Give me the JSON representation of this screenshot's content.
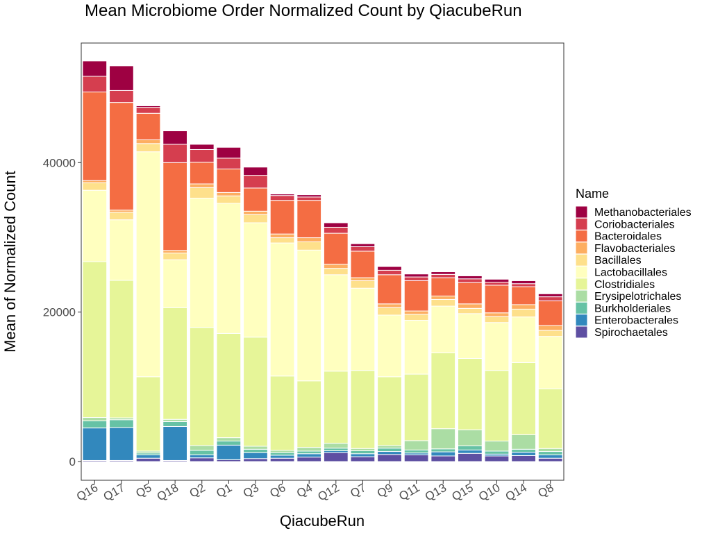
{
  "chart_data": {
    "type": "bar",
    "stacked": true,
    "title": "Mean Microbiome Order Normalized Count by QiacubeRun",
    "xlabel": "QiacubeRun",
    "ylabel": "Mean of Normalized Count",
    "ylim": [
      -2500,
      56000
    ],
    "yticks": [
      0,
      20000,
      40000
    ],
    "ytick_labels": [
      "0",
      "20000",
      "40000"
    ],
    "grid": false,
    "legend": {
      "title": "Name",
      "position": "right"
    },
    "categories": [
      "Q16",
      "Q17",
      "Q5",
      "Q18",
      "Q2",
      "Q1",
      "Q3",
      "Q6",
      "Q4",
      "Q12",
      "Q7",
      "Q9",
      "Q11",
      "Q13",
      "Q15",
      "Q10",
      "Q14",
      "Q8"
    ],
    "series": [
      {
        "name": "Spirochaetales",
        "color": "#5e4fa2",
        "values": [
          150,
          150,
          450,
          150,
          500,
          250,
          400,
          450,
          600,
          1200,
          650,
          950,
          900,
          750,
          1100,
          750,
          800,
          450
        ]
      },
      {
        "name": "Enterobacterales",
        "color": "#3288bd",
        "values": [
          4350,
          4400,
          450,
          4550,
          400,
          1950,
          800,
          400,
          450,
          250,
          400,
          400,
          250,
          550,
          450,
          250,
          450,
          450
        ]
      },
      {
        "name": "Burkholderiales",
        "color": "#66c2a5",
        "values": [
          950,
          1050,
          250,
          650,
          600,
          550,
          450,
          350,
          350,
          350,
          400,
          450,
          400,
          400,
          550,
          400,
          400,
          450
        ]
      },
      {
        "name": "Erysipelotrichales",
        "color": "#abdda4",
        "values": [
          450,
          250,
          250,
          300,
          650,
          450,
          400,
          300,
          500,
          650,
          300,
          350,
          1250,
          2700,
          2150,
          1350,
          1950,
          400
        ]
      },
      {
        "name": "Clostridiales",
        "color": "#e6f598",
        "values": [
          20850,
          18400,
          9950,
          14950,
          15800,
          13950,
          14600,
          9950,
          8900,
          9650,
          10450,
          9200,
          8900,
          10150,
          9550,
          9450,
          9650,
          8000
        ]
      },
      {
        "name": "Lactobacillales",
        "color": "#ffffbf",
        "values": [
          9550,
          8100,
          30100,
          6400,
          17300,
          17400,
          15300,
          17800,
          17500,
          12900,
          11000,
          8250,
          7200,
          6250,
          6000,
          6400,
          6100,
          7000
        ]
      },
      {
        "name": "Bacillales",
        "color": "#fee08b",
        "values": [
          1000,
          1000,
          1100,
          900,
          1400,
          1000,
          1100,
          700,
          1100,
          850,
          1000,
          1000,
          800,
          900,
          700,
          800,
          1050,
          800
        ]
      },
      {
        "name": "Flavobacteriales",
        "color": "#fdae61",
        "values": [
          300,
          300,
          500,
          350,
          500,
          450,
          450,
          500,
          550,
          550,
          400,
          500,
          450,
          450,
          600,
          500,
          600,
          650
        ]
      },
      {
        "name": "Bacteroidales",
        "color": "#f46d43",
        "values": [
          11850,
          14400,
          3550,
          11750,
          2900,
          3150,
          3100,
          4500,
          5000,
          4150,
          3550,
          3900,
          4050,
          2450,
          2850,
          3700,
          2400,
          3300
        ]
      },
      {
        "name": "Coriobacteriales",
        "color": "#d53e4f",
        "values": [
          2100,
          1600,
          800,
          2450,
          1700,
          1450,
          1700,
          650,
          450,
          800,
          600,
          600,
          500,
          450,
          500,
          400,
          400,
          550
        ]
      },
      {
        "name": "Methanobacteriales",
        "color": "#9e0142",
        "values": [
          2050,
          3300,
          200,
          1800,
          700,
          1450,
          1100,
          200,
          300,
          600,
          400,
          500,
          400,
          350,
          400,
          400,
          400,
          400
        ]
      }
    ]
  }
}
